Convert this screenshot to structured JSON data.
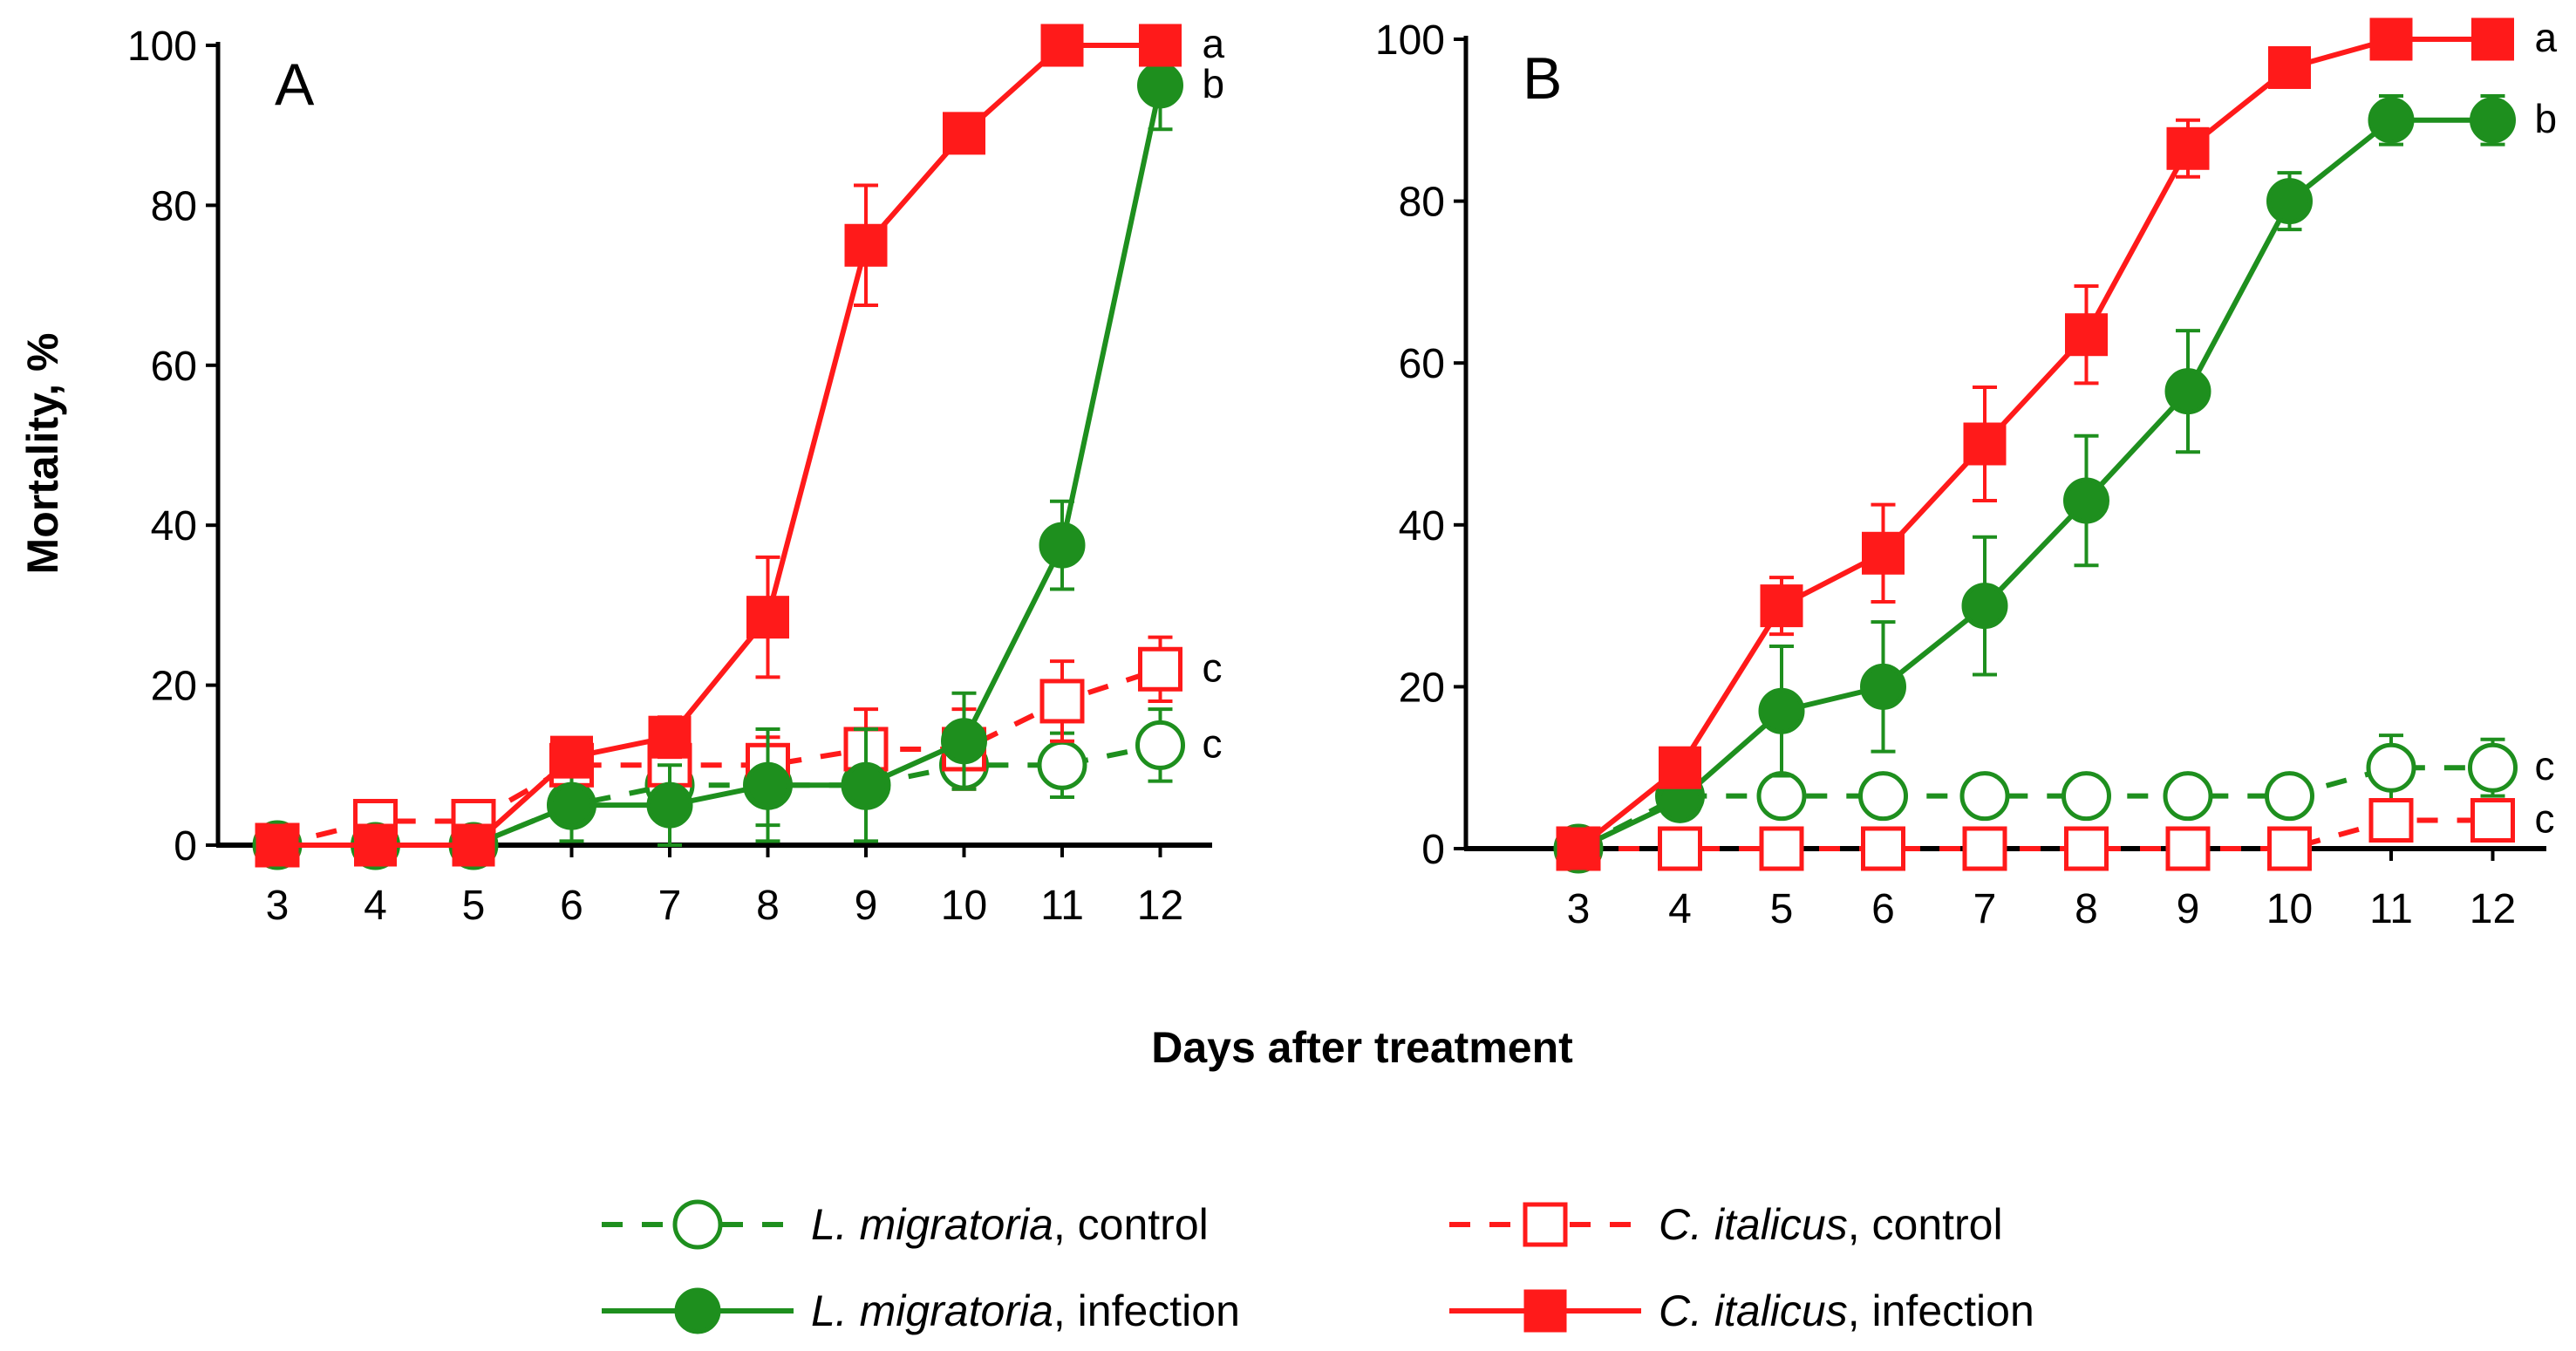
{
  "figure": {
    "ylabel": "Mortality, %",
    "xlabel": "Days after treatment"
  },
  "colors": {
    "green": "#1e8f1e",
    "red": "#ff1a1a"
  },
  "legend": {
    "entries": [
      {
        "series": "lm_control",
        "italic": "L. migratoria",
        "rest": ", control"
      },
      {
        "series": "ci_control",
        "italic": "C. italicus",
        "rest": ", control"
      },
      {
        "series": "lm_infection",
        "italic": "L. migratoria",
        "rest": ", infection"
      },
      {
        "series": "ci_infection",
        "italic": "C. italicus",
        "rest": ", infection"
      }
    ]
  },
  "chart_data": [
    {
      "type": "line",
      "panel": "A",
      "title": "",
      "xlabel": "Days after treatment",
      "ylabel": "Mortality, %",
      "x": [
        3,
        4,
        5,
        6,
        7,
        8,
        9,
        10,
        11,
        12
      ],
      "xlim": [
        3,
        12
      ],
      "ylim": [
        0,
        100
      ],
      "yticks": [
        "0",
        "20",
        "40",
        "60",
        "80",
        "100"
      ],
      "xticks": [
        "3",
        "4",
        "5",
        "6",
        "7",
        "8",
        "9",
        "10",
        "11",
        "12"
      ],
      "series": [
        {
          "key": "lm_control",
          "name": "L. migratoria, control",
          "color": "green",
          "style": "dashed",
          "marker": "open-circle",
          "values": [
            0,
            0,
            0,
            5,
            7.5,
            7.5,
            7.5,
            10,
            10,
            12.5
          ],
          "errors": [
            0,
            0,
            0,
            0,
            0,
            5,
            0,
            0,
            4,
            4.5
          ]
        },
        {
          "key": "ci_control",
          "name": "C. italicus, control",
          "color": "red",
          "style": "dashed",
          "marker": "open-square",
          "values": [
            0,
            3,
            3,
            10,
            10,
            10,
            12,
            12,
            18,
            22
          ],
          "errors": [
            0,
            0,
            0,
            0,
            0,
            3.5,
            5,
            5,
            5,
            4
          ]
        },
        {
          "key": "lm_infection",
          "name": "L. migratoria, infection",
          "color": "green",
          "style": "solid",
          "marker": "filled-circle",
          "values": [
            0,
            0,
            0,
            5,
            5,
            7.5,
            7.5,
            13,
            37.5,
            95
          ],
          "errors": [
            0,
            0,
            0,
            4.5,
            5,
            7,
            7,
            6,
            5.5,
            5.5
          ]
        },
        {
          "key": "ci_infection",
          "name": "C. italicus, infection",
          "color": "red",
          "style": "solid",
          "marker": "filled-square",
          "values": [
            0,
            0,
            0,
            11,
            13.5,
            28.5,
            75,
            89,
            100,
            100
          ],
          "errors": [
            0,
            0,
            0,
            2,
            2.5,
            7.5,
            7.5,
            0,
            0,
            0
          ]
        }
      ],
      "annotations": [
        {
          "text": "a",
          "series": "ci_infection"
        },
        {
          "text": "b",
          "series": "lm_infection"
        },
        {
          "text": "c",
          "series": "ci_control"
        },
        {
          "text": "c",
          "series": "lm_control"
        }
      ]
    },
    {
      "type": "line",
      "panel": "B",
      "title": "",
      "xlabel": "Days after treatment",
      "ylabel": "Mortality, %",
      "x": [
        3,
        4,
        5,
        6,
        7,
        8,
        9,
        10,
        11,
        12
      ],
      "xlim": [
        3,
        12
      ],
      "ylim": [
        0,
        100
      ],
      "yticks": [
        "0",
        "20",
        "40",
        "60",
        "80",
        "100"
      ],
      "xticks": [
        "3",
        "4",
        "5",
        "6",
        "7",
        "8",
        "9",
        "10",
        "11",
        "12"
      ],
      "series": [
        {
          "key": "lm_control",
          "name": "L. migratoria, control",
          "color": "green",
          "style": "dashed",
          "marker": "open-circle",
          "values": [
            0,
            6.5,
            6.5,
            6.5,
            6.5,
            6.5,
            6.5,
            6.5,
            10,
            10
          ],
          "errors": [
            0,
            0,
            0,
            0,
            0,
            0,
            0,
            0,
            4,
            3.5
          ]
        },
        {
          "key": "ci_control",
          "name": "C. italicus, control",
          "color": "red",
          "style": "dashed",
          "marker": "open-square",
          "values": [
            0,
            0,
            0,
            0,
            0,
            0,
            0,
            0,
            3.5,
            3.5
          ],
          "errors": [
            0,
            0,
            0,
            0,
            0,
            0,
            0,
            0,
            2,
            2
          ]
        },
        {
          "key": "lm_infection",
          "name": "L. migratoria, infection",
          "color": "green",
          "style": "solid",
          "marker": "filled-circle",
          "values": [
            0,
            6,
            17,
            20,
            30,
            43,
            56.5,
            80,
            90,
            90
          ],
          "errors": [
            0,
            0,
            8,
            8,
            8.5,
            8,
            7.5,
            3.5,
            3,
            3
          ]
        },
        {
          "key": "ci_infection",
          "name": "C. italicus, infection",
          "color": "red",
          "style": "solid",
          "marker": "filled-square",
          "values": [
            0,
            10,
            30,
            36.5,
            50,
            63.5,
            86.5,
            96.5,
            100,
            100
          ],
          "errors": [
            0,
            0,
            3.5,
            6,
            7,
            6,
            3.5,
            0,
            0,
            0
          ]
        }
      ],
      "annotations": [
        {
          "text": "a",
          "series": "ci_infection"
        },
        {
          "text": "b",
          "series": "lm_infection"
        },
        {
          "text": "c",
          "series": "lm_control"
        },
        {
          "text": "c",
          "series": "ci_control"
        }
      ]
    }
  ]
}
